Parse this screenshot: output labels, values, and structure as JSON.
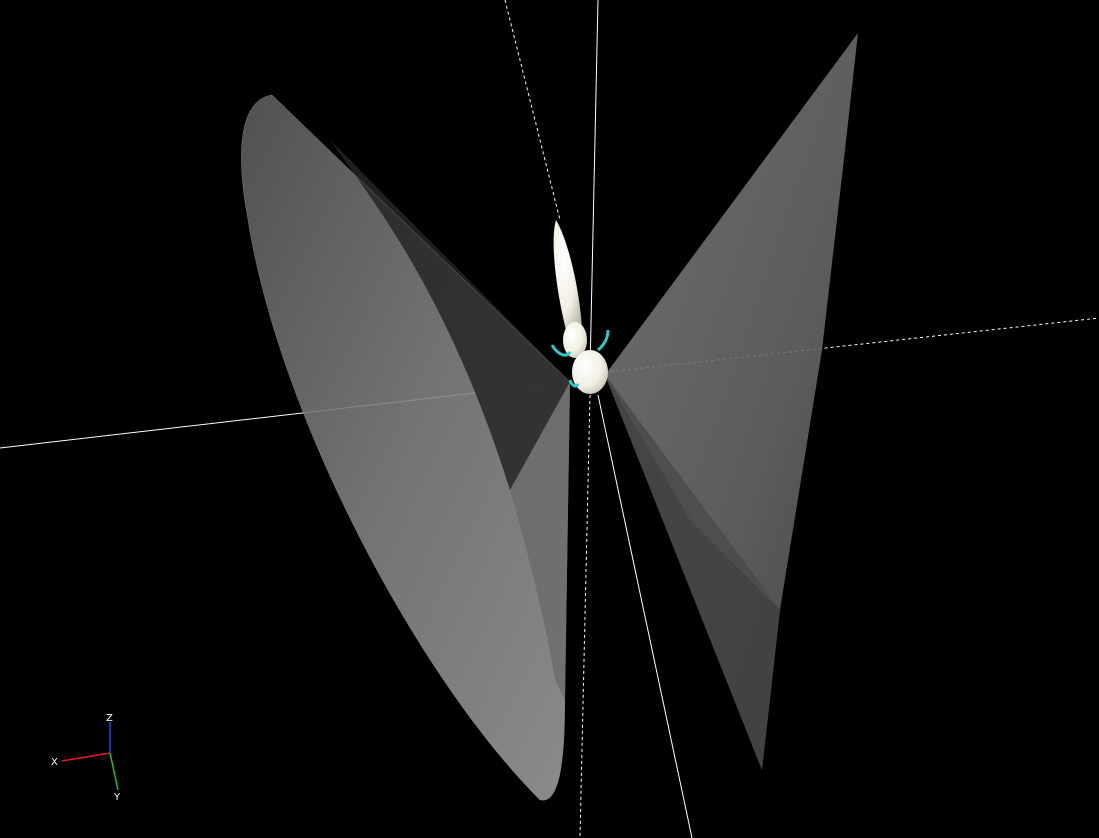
{
  "viewport": {
    "background": "#000000",
    "cone_color": "#8a8a8a",
    "cone_dark_color": "#2a2a2a",
    "model_color": "#f4f2e6",
    "accent_color": "#2fc8c8"
  },
  "orientation_widget": {
    "x_label": "X",
    "y_label": "Y",
    "z_label": "Z",
    "x_color": "#e02020",
    "y_color": "#20c020",
    "z_color": "#2040ff"
  }
}
